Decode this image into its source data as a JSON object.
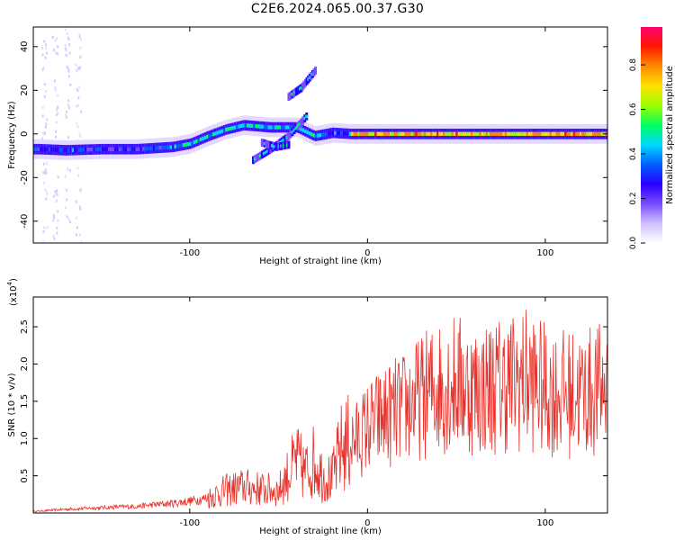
{
  "title": "C2E6.2024.065.00.37.G30",
  "colors": {
    "line": "#e8312a",
    "axis": "#000000",
    "colormap": [
      "#ffffff",
      "#cfc0ff",
      "#7a4bff",
      "#2a00ff",
      "#0060ff",
      "#00d8ff",
      "#00ff60",
      "#9cff00",
      "#ffe100",
      "#ff8a00",
      "#ff1a00",
      "#ff0070"
    ]
  },
  "chart_data": [
    {
      "type": "heatmap",
      "xlabel": "Height of straight line (km)",
      "ylabel": "Frequency (Hz)",
      "xlim": [
        -188,
        135
      ],
      "ylim": [
        -50,
        49
      ],
      "xticks": [
        {
          "v": -100,
          "label": "-100"
        },
        {
          "v": 0,
          "label": "0"
        },
        {
          "v": 100,
          "label": "100"
        }
      ],
      "yticks": [
        {
          "v": -40,
          "label": "-40"
        },
        {
          "v": -20,
          "label": "-20"
        },
        {
          "v": 0,
          "label": "0"
        },
        {
          "v": 20,
          "label": "20"
        },
        {
          "v": 40,
          "label": "40"
        }
      ],
      "trace": [
        {
          "x": -185,
          "f": -7
        },
        {
          "x": -170,
          "f": -7.5
        },
        {
          "x": -150,
          "f": -7
        },
        {
          "x": -130,
          "f": -7
        },
        {
          "x": -110,
          "f": -6
        },
        {
          "x": -100,
          "f": -4.5
        },
        {
          "x": -90,
          "f": -1
        },
        {
          "x": -80,
          "f": 2
        },
        {
          "x": -70,
          "f": 4
        },
        {
          "x": -55,
          "f": 3
        },
        {
          "x": -40,
          "f": 3
        },
        {
          "x": -30,
          "f": -1
        },
        {
          "x": -20,
          "f": 0.5
        },
        {
          "x": -10,
          "f": 0
        },
        {
          "x": 0,
          "f": 0
        },
        {
          "x": 20,
          "f": 0
        },
        {
          "x": 50,
          "f": 0
        },
        {
          "x": 80,
          "f": 0
        },
        {
          "x": 110,
          "f": 0
        },
        {
          "x": 135,
          "f": 0
        }
      ],
      "branches": [
        {
          "points": [
            {
              "x": -65,
              "f": -12
            },
            {
              "x": -55,
              "f": -7
            },
            {
              "x": -45,
              "f": -1
            },
            {
              "x": -35,
              "f": 8
            }
          ]
        },
        {
          "points": [
            {
              "x": -45,
              "f": 17
            },
            {
              "x": -38,
              "f": 21
            },
            {
              "x": -30,
              "f": 29
            }
          ]
        },
        {
          "points": [
            {
              "x": -60,
              "f": -4
            },
            {
              "x": -52,
              "f": -6
            },
            {
              "x": -45,
              "f": -5
            }
          ]
        }
      ],
      "colorbar": {
        "label": "Normalized spectral amplitude",
        "range": [
          0,
          0.97
        ],
        "ticks": [
          {
            "v": 0,
            "label": "0.0"
          },
          {
            "v": 0.2,
            "label": "0.2"
          },
          {
            "v": 0.4,
            "label": "0.4"
          },
          {
            "v": 0.6,
            "label": "0.6"
          },
          {
            "v": 0.8,
            "label": "0.8"
          }
        ]
      }
    },
    {
      "type": "line",
      "xlabel": "Height of straight line (km)",
      "ylabel": "SNR (10 * v/v)",
      "multiplier": "(x10",
      "multiplier_exp": "4",
      "multiplier_close": ")",
      "xlim": [
        -188,
        135
      ],
      "ylim": [
        0,
        2.9
      ],
      "xticks": [
        {
          "v": -100,
          "label": "-100"
        },
        {
          "v": 0,
          "label": "0"
        },
        {
          "v": 100,
          "label": "100"
        }
      ],
      "yticks": [
        {
          "v": 0.5,
          "label": "0.5"
        },
        {
          "v": 1.0,
          "label": "1.0"
        },
        {
          "v": 1.5,
          "label": "1.5"
        },
        {
          "v": 2.0,
          "label": "2.0"
        },
        {
          "v": 2.5,
          "label": "2.5"
        }
      ],
      "series": [
        {
          "points": [
            [
              -188,
              0.02
            ],
            [
              -170,
              0.05
            ],
            [
              -150,
              0.07
            ],
            [
              -130,
              0.09
            ],
            [
              -110,
              0.13
            ],
            [
              -100,
              0.16
            ],
            [
              -90,
              0.2
            ],
            [
              -80,
              0.3
            ],
            [
              -70,
              0.35
            ],
            [
              -60,
              0.32
            ],
            [
              -50,
              0.3
            ],
            [
              -45,
              0.5
            ],
            [
              -40,
              0.7
            ],
            [
              -35,
              0.55
            ],
            [
              -30,
              0.7
            ],
            [
              -25,
              0.5
            ],
            [
              -20,
              0.45
            ],
            [
              -15,
              0.85
            ],
            [
              -10,
              0.95
            ],
            [
              -5,
              1.0
            ],
            [
              0,
              1.15
            ],
            [
              10,
              1.3
            ],
            [
              20,
              1.4
            ],
            [
              30,
              1.55
            ],
            [
              40,
              1.7
            ],
            [
              50,
              1.75
            ],
            [
              60,
              1.65
            ],
            [
              70,
              1.7
            ],
            [
              80,
              1.75
            ],
            [
              90,
              1.8
            ],
            [
              100,
              1.65
            ],
            [
              110,
              1.6
            ],
            [
              120,
              1.6
            ],
            [
              130,
              1.65
            ],
            [
              135,
              1.7
            ]
          ]
        }
      ]
    }
  ]
}
